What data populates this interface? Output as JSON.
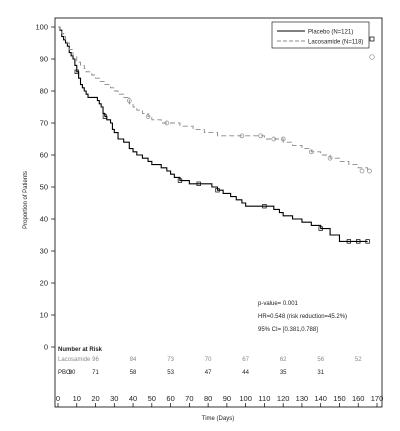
{
  "chart_data": {
    "type": "line",
    "subtype": "kaplan-meier",
    "title": "",
    "xlabel": "Time (Days)",
    "ylabel": "Proportion of Patients",
    "xlim": [
      0,
      170
    ],
    "ylim": [
      0,
      100
    ],
    "x_ticks": [
      0,
      10,
      20,
      30,
      40,
      50,
      60,
      70,
      80,
      90,
      100,
      110,
      120,
      130,
      140,
      150,
      160,
      170
    ],
    "y_ticks": [
      0,
      10,
      20,
      30,
      40,
      50,
      60,
      70,
      80,
      90,
      100
    ],
    "grid": false,
    "legend_position": "top-right",
    "series": [
      {
        "name": "Placebo (N=121)",
        "style": "solid",
        "color": "#000000",
        "marker": "square",
        "points": [
          [
            0,
            100
          ],
          [
            1,
            99
          ],
          [
            2,
            97
          ],
          [
            3,
            96
          ],
          [
            4,
            95
          ],
          [
            5,
            94
          ],
          [
            6,
            92
          ],
          [
            7,
            91
          ],
          [
            8,
            90
          ],
          [
            9,
            88
          ],
          [
            10,
            86
          ],
          [
            11,
            84
          ],
          [
            12,
            82
          ],
          [
            13,
            81
          ],
          [
            14,
            80
          ],
          [
            15,
            79
          ],
          [
            16,
            78
          ],
          [
            20,
            78
          ],
          [
            21,
            77
          ],
          [
            22,
            76
          ],
          [
            23,
            75
          ],
          [
            24,
            73
          ],
          [
            25,
            72
          ],
          [
            26,
            71
          ],
          [
            28,
            70
          ],
          [
            29,
            68
          ],
          [
            30,
            67
          ],
          [
            32,
            65
          ],
          [
            35,
            64
          ],
          [
            38,
            62
          ],
          [
            40,
            61
          ],
          [
            42,
            60
          ],
          [
            45,
            59
          ],
          [
            48,
            58
          ],
          [
            50,
            57
          ],
          [
            55,
            56
          ],
          [
            58,
            55
          ],
          [
            60,
            54
          ],
          [
            62,
            53
          ],
          [
            65,
            52
          ],
          [
            70,
            51
          ],
          [
            75,
            51
          ],
          [
            80,
            51
          ],
          [
            82,
            50
          ],
          [
            85,
            49
          ],
          [
            88,
            48
          ],
          [
            92,
            47
          ],
          [
            95,
            46
          ],
          [
            98,
            45
          ],
          [
            100,
            44
          ],
          [
            104,
            44
          ],
          [
            110,
            44
          ],
          [
            112,
            44
          ],
          [
            115,
            43
          ],
          [
            118,
            42
          ],
          [
            120,
            41
          ],
          [
            125,
            40
          ],
          [
            130,
            39
          ],
          [
            135,
            38
          ],
          [
            140,
            37
          ],
          [
            145,
            35
          ],
          [
            150,
            33
          ],
          [
            155,
            33
          ],
          [
            160,
            33
          ],
          [
            165,
            33
          ]
        ],
        "censor_points": [
          [
            10,
            86
          ],
          [
            25,
            72
          ],
          [
            65,
            52
          ],
          [
            75,
            51
          ],
          [
            85,
            49
          ],
          [
            110,
            44
          ],
          [
            140,
            37
          ],
          [
            155,
            33
          ],
          [
            160,
            33
          ],
          [
            165,
            33
          ]
        ]
      },
      {
        "name": "Lacosamide (N=118)",
        "style": "dashed",
        "color": "#888888",
        "marker": "circle",
        "points": [
          [
            0,
            100
          ],
          [
            1,
            99
          ],
          [
            2,
            98
          ],
          [
            3,
            97
          ],
          [
            4,
            96
          ],
          [
            5,
            95
          ],
          [
            6,
            93
          ],
          [
            8,
            91
          ],
          [
            10,
            89
          ],
          [
            12,
            88
          ],
          [
            14,
            87
          ],
          [
            15,
            86
          ],
          [
            18,
            85
          ],
          [
            20,
            84
          ],
          [
            22,
            83
          ],
          [
            25,
            82
          ],
          [
            28,
            81
          ],
          [
            30,
            80
          ],
          [
            32,
            79
          ],
          [
            35,
            78
          ],
          [
            38,
            76
          ],
          [
            40,
            75
          ],
          [
            42,
            74
          ],
          [
            45,
            73
          ],
          [
            48,
            72
          ],
          [
            50,
            71
          ],
          [
            55,
            70
          ],
          [
            60,
            70
          ],
          [
            65,
            69
          ],
          [
            70,
            69
          ],
          [
            72,
            68
          ],
          [
            75,
            68
          ],
          [
            78,
            67
          ],
          [
            80,
            67
          ],
          [
            85,
            66
          ],
          [
            90,
            66
          ],
          [
            95,
            66
          ],
          [
            100,
            66
          ],
          [
            105,
            66
          ],
          [
            110,
            65
          ],
          [
            115,
            65
          ],
          [
            120,
            64
          ],
          [
            125,
            63
          ],
          [
            130,
            62
          ],
          [
            135,
            61
          ],
          [
            140,
            60
          ],
          [
            145,
            59
          ],
          [
            150,
            58
          ],
          [
            155,
            57
          ],
          [
            160,
            56
          ],
          [
            165,
            55
          ]
        ],
        "censor_points": [
          [
            38,
            77
          ],
          [
            48,
            72
          ],
          [
            58,
            70
          ],
          [
            98,
            66
          ],
          [
            108,
            66
          ],
          [
            115,
            65
          ],
          [
            120,
            65
          ],
          [
            135,
            61
          ],
          [
            145,
            59
          ],
          [
            162,
            55
          ],
          [
            166,
            55
          ]
        ]
      }
    ],
    "annotations": [
      "p-value= 0.001",
      "HR=0.548 (risk reduction=45.2%)",
      "95% CI= [0.381,0.788]"
    ],
    "number_at_risk": {
      "title": "Number at Risk",
      "lacosamide_label": "Lacosamide",
      "placebo_label": "PBO:",
      "lacosamide": [
        [
          20,
          "96"
        ],
        [
          40,
          "84"
        ],
        [
          60,
          "73"
        ],
        [
          80,
          "70"
        ],
        [
          100,
          "67"
        ],
        [
          120,
          "62"
        ],
        [
          140,
          "56"
        ],
        [
          160,
          "52"
        ]
      ],
      "placebo": [
        [
          0,
          "90"
        ],
        [
          20,
          "71"
        ],
        [
          40,
          "58"
        ],
        [
          60,
          "53"
        ],
        [
          80,
          "47"
        ],
        [
          100,
          "44"
        ],
        [
          120,
          "35"
        ],
        [
          140,
          "31"
        ]
      ]
    },
    "legend_ends": {
      "placebo_label": "Placebo (N=121)",
      "lacosamide_label": "Lacosamide (N=118)"
    }
  }
}
